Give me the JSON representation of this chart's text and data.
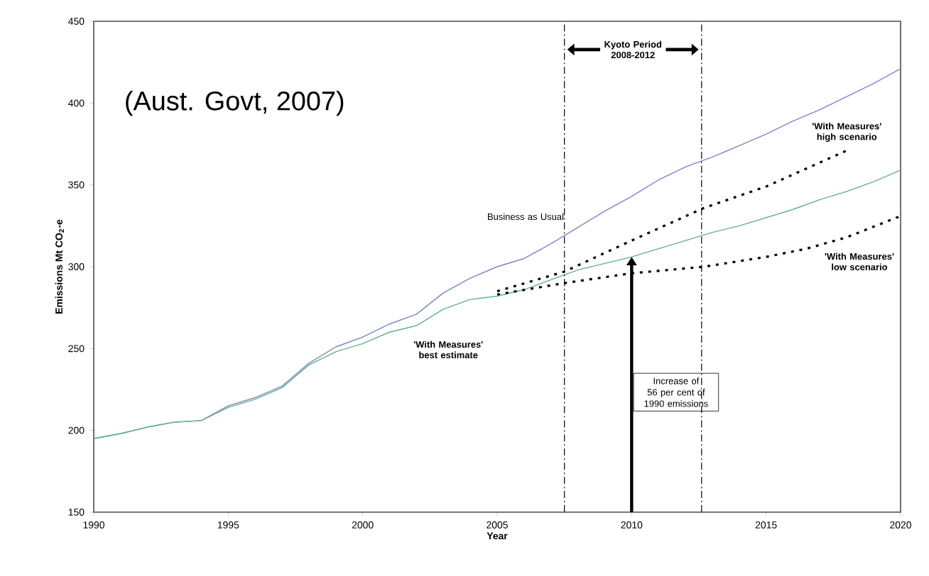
{
  "chart_data": {
    "type": "line",
    "xlabel": "Year",
    "ylabel": "Emissions Mt CO$_{2}$-e",
    "xlim": [
      1990,
      2020
    ],
    "xticks": [
      1990,
      1995,
      2000,
      2005,
      2010,
      2015,
      2020
    ],
    "ylim": [
      150,
      450
    ],
    "yticks": [
      150,
      200,
      250,
      300,
      350,
      400,
      450
    ],
    "grid": false,
    "series": [
      {
        "name": "Business as Usual",
        "color": "#7b86c4",
        "line_style": "solid",
        "x": [
          1990,
          1991,
          1992,
          1993,
          1994,
          1995,
          1996,
          1997,
          1998,
          1999,
          2000,
          2001,
          2002,
          2003,
          2004,
          2005,
          2006,
          2007,
          2008,
          2009,
          2010,
          2011,
          2012,
          2013,
          2014,
          2015,
          2016,
          2017,
          2018,
          2019,
          2020
        ],
        "values": [
          195,
          198,
          202,
          205,
          206,
          215,
          220,
          227,
          241,
          251,
          257,
          265,
          271,
          284,
          293,
          300,
          305,
          314,
          324,
          334,
          343,
          353,
          361,
          367,
          374,
          381,
          389,
          396,
          404,
          412,
          421
        ]
      },
      {
        "name": "'With Measures' best estimate",
        "color": "#5fb38a",
        "line_style": "solid",
        "x": [
          1990,
          1991,
          1992,
          1993,
          1994,
          1995,
          1996,
          1997,
          1998,
          1999,
          2000,
          2001,
          2002,
          2003,
          2004,
          2005,
          2006,
          2007,
          2008,
          2009,
          2010,
          2011,
          2012,
          2013,
          2014,
          2015,
          2016,
          2017,
          2018,
          2019,
          2020
        ],
        "values": [
          195,
          198,
          202,
          205,
          206,
          214,
          219,
          226,
          240,
          248,
          253,
          260,
          264,
          274,
          280,
          282,
          286,
          292,
          298,
          302,
          306,
          311,
          316,
          321,
          325,
          330,
          335,
          341,
          346,
          352,
          359
        ]
      },
      {
        "name": "'With Measures' high scenario",
        "color": "#000000",
        "line_style": "dotted",
        "x": [
          2005,
          2007.5,
          2010,
          2012.7,
          2015,
          2018
        ],
        "values": [
          285,
          297,
          316,
          336,
          349,
          371
        ]
      },
      {
        "name": "'With Measures' low scenario",
        "color": "#000000",
        "line_style": "dotted",
        "x": [
          2005,
          2007.5,
          2010,
          2012.7,
          2015,
          2016.5,
          2018,
          2020
        ],
        "values": [
          283,
          290,
          296,
          300,
          306,
          311,
          318,
          331
        ]
      }
    ],
    "ref_lines": [
      {
        "axis": "x",
        "value": 2007.5,
        "color": "#000000",
        "line_style": "dashdot"
      },
      {
        "axis": "x",
        "value": 2012.6,
        "color": "#000000",
        "line_style": "dashdot"
      }
    ],
    "annotations": [
      "(Aust. Govt, 2007)",
      "Kyoto Period 2008-2012",
      "Increase of 56 per cent of 1990 emissions"
    ]
  }
}
